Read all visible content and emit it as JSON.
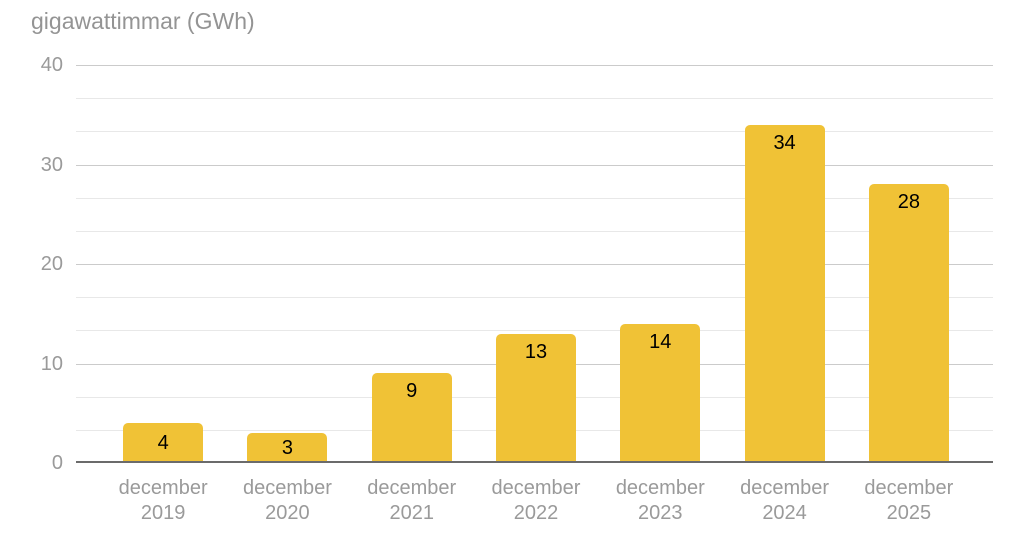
{
  "chart_data": {
    "type": "bar",
    "title": "gigawattimmar (GWh)",
    "categories": [
      "december 2019",
      "december 2020",
      "december 2021",
      "december 2022",
      "december 2023",
      "december 2024",
      "december 2025"
    ],
    "values": [
      4,
      3,
      9,
      13,
      14,
      34,
      28
    ],
    "data_labels_shown": true,
    "xlabel": "",
    "ylabel": "",
    "ylim": [
      0,
      40
    ],
    "y_major_ticks": [
      0,
      10,
      20,
      30,
      40
    ],
    "minor_gridlines_between_majors": 2,
    "grid": "on",
    "legend": "none"
  },
  "colors": {
    "bar": "#f0c236",
    "major_gridline": "#cbcbcb",
    "minor_gridline": "#e8e8e8",
    "axis_line": "#6b6b6b",
    "axis_label_gray": "#9a9a9a",
    "title_gray": "#949494",
    "value_label": "#000000",
    "background": "#ffffff"
  }
}
